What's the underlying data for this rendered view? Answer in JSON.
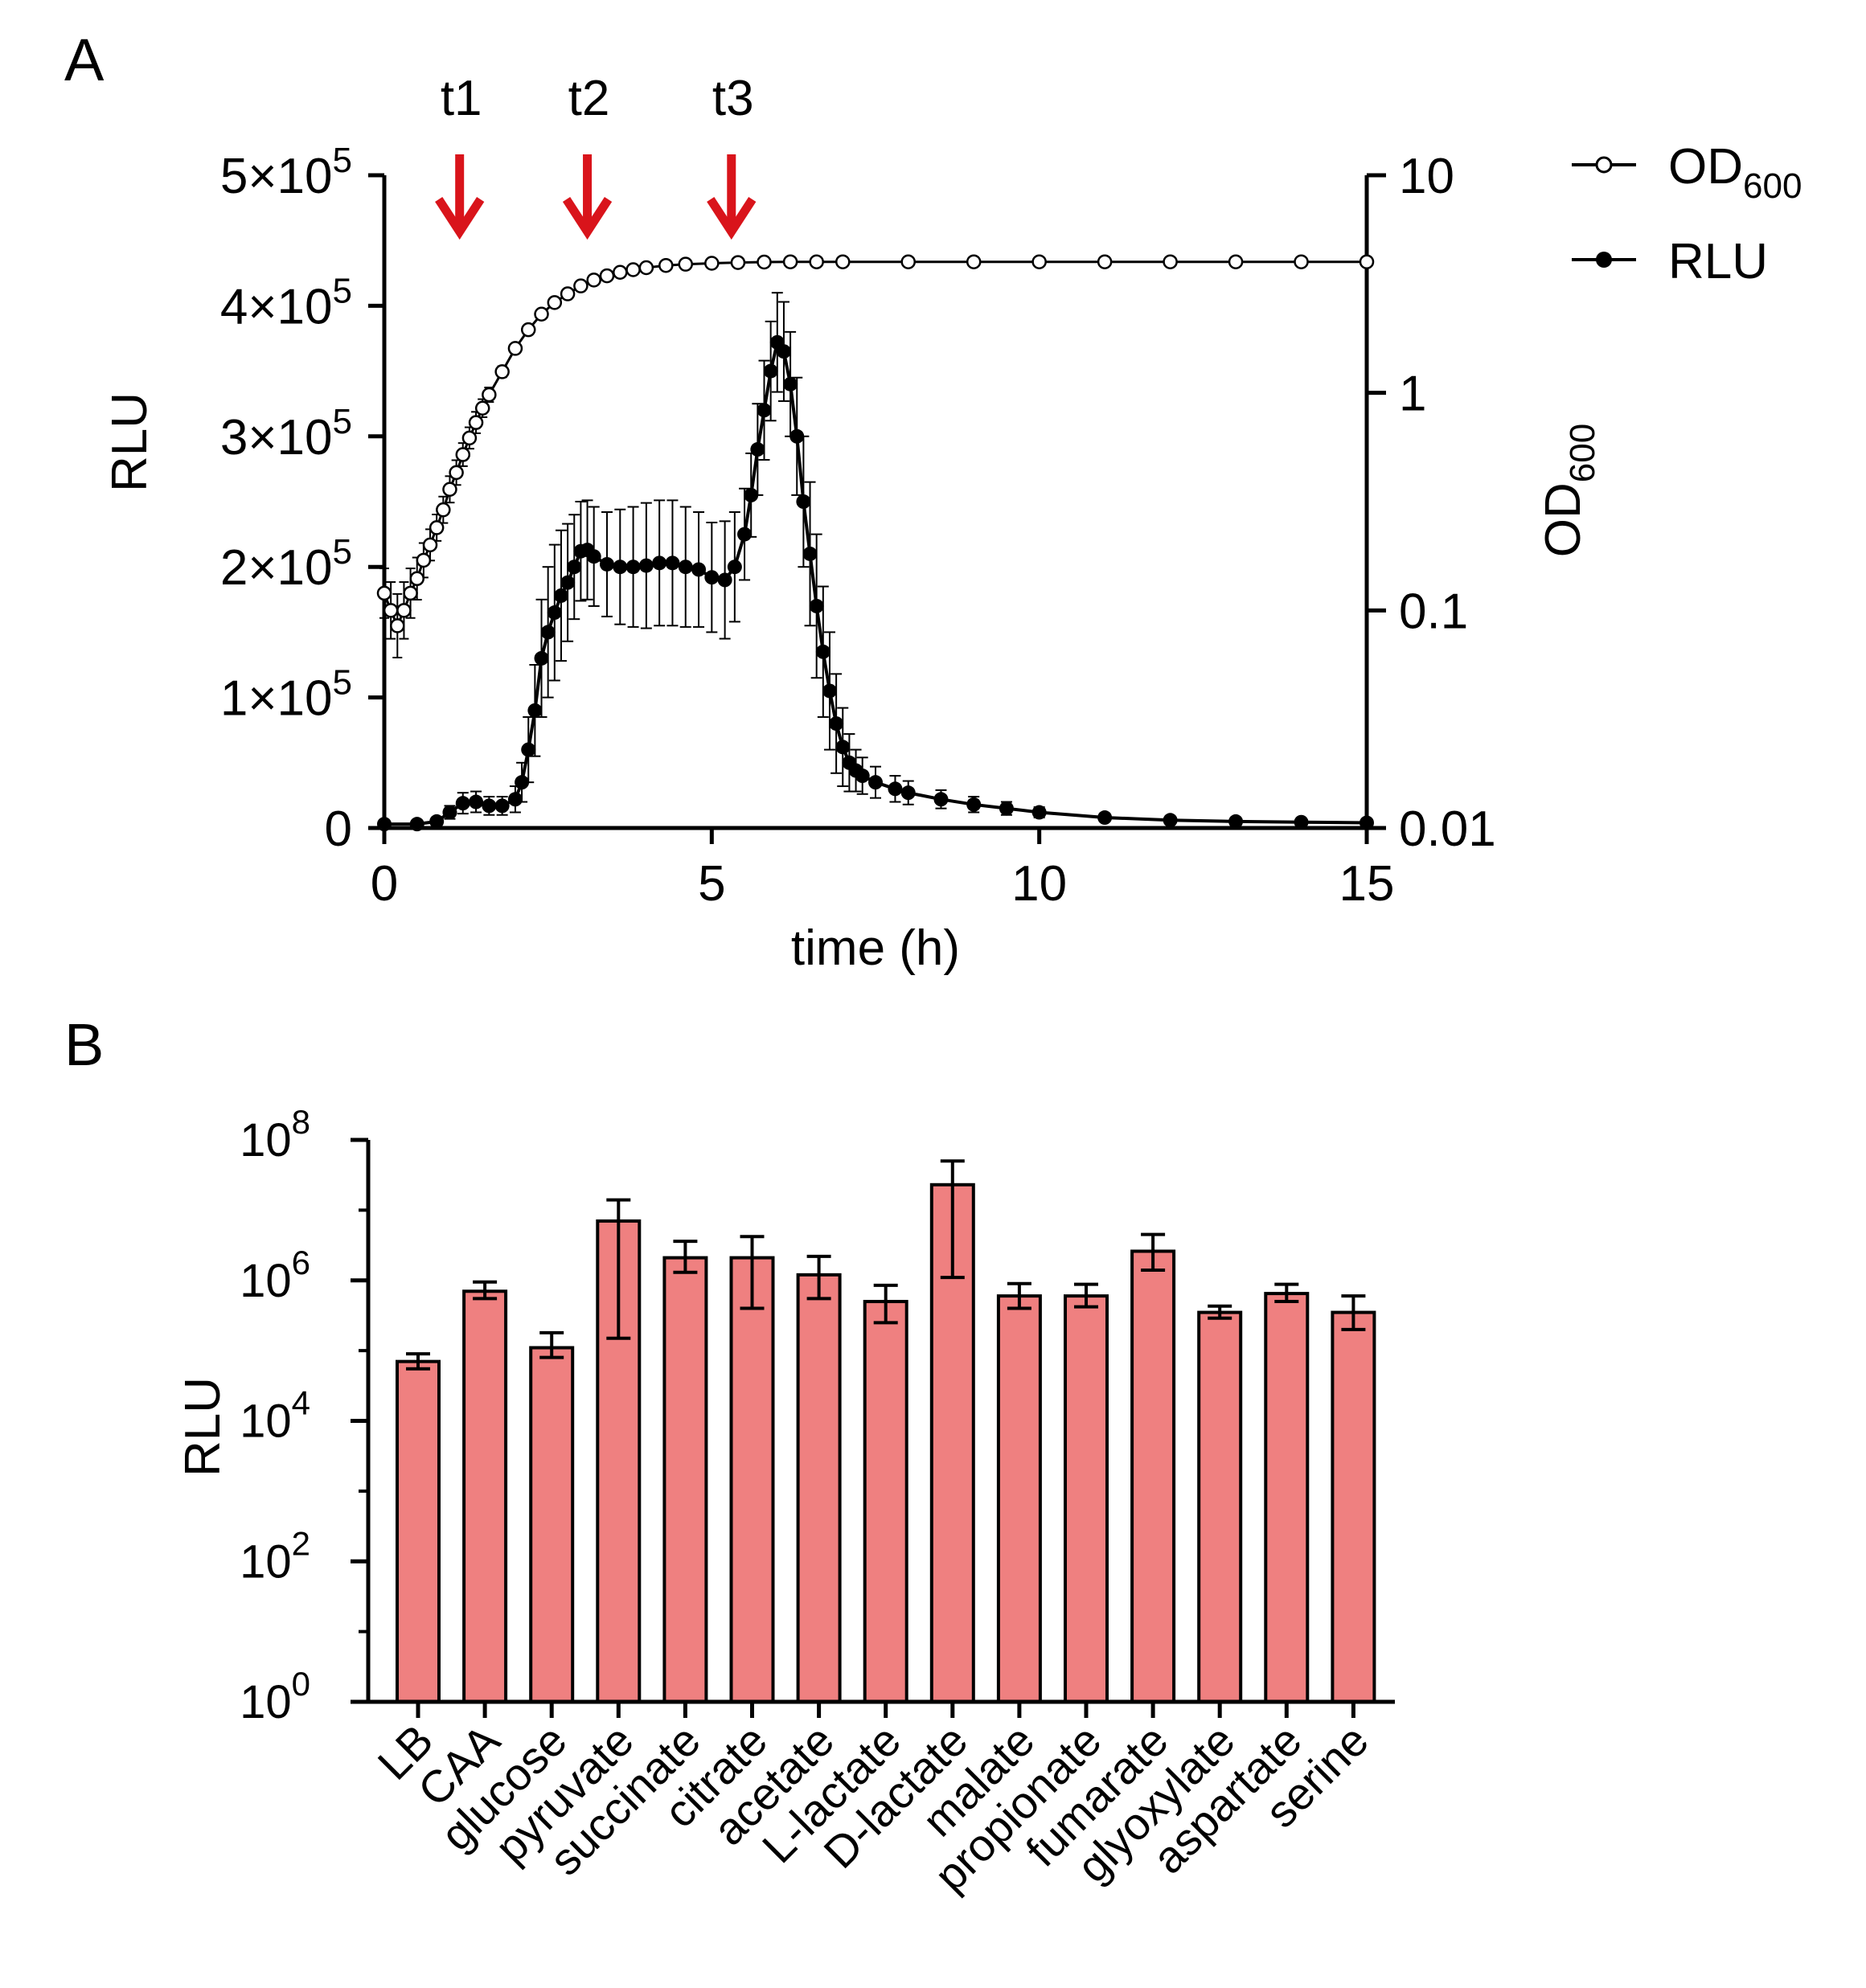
{
  "panels": {
    "a_label": "A",
    "b_label": "B"
  },
  "colors": {
    "arrow": "#d9141b",
    "bar_fill": "#ef8080",
    "line": "#000000"
  },
  "chart_data": [
    {
      "id": "A",
      "type": "line",
      "xlabel": "time (h)",
      "xlim": [
        0,
        15
      ],
      "x_ticks": [
        "0",
        "5",
        "10",
        "15"
      ],
      "x_tick_values": [
        0,
        5,
        10,
        15
      ],
      "y_left": {
        "label": "RLU",
        "ylim": [
          0,
          500000
        ],
        "tick_values": [
          0,
          100000,
          200000,
          300000,
          400000,
          500000
        ],
        "tick_mantissa": [
          "0",
          "1×10",
          "2×10",
          "3×10",
          "4×10",
          "5×10"
        ],
        "tick_exponent": [
          "",
          "5",
          "5",
          "5",
          "5",
          "5"
        ]
      },
      "y_right": {
        "label": "OD",
        "label_sub": "600",
        "scale": "log",
        "ylim": [
          0.01,
          10
        ],
        "tick_values": [
          0.01,
          0.1,
          1,
          10
        ],
        "tick_labels": [
          "0.01",
          "0.1",
          "1",
          "10"
        ]
      },
      "annotations": [
        {
          "label": "t1",
          "x": 1.15
        },
        {
          "label": "t2",
          "x": 3.1
        },
        {
          "label": "t3",
          "x": 5.3
        }
      ],
      "legend": {
        "position": "top-right",
        "entries": [
          {
            "name": "OD",
            "sub": "600",
            "marker": "open-circle"
          },
          {
            "name": "RLU",
            "marker": "filled-circle"
          }
        ]
      },
      "series": [
        {
          "name": "RLU",
          "axis": "left",
          "x": [
            0,
            0.5,
            0.8,
            1.0,
            1.2,
            1.4,
            1.6,
            1.8,
            2.0,
            2.1,
            2.2,
            2.3,
            2.4,
            2.5,
            2.6,
            2.7,
            2.8,
            2.9,
            3.0,
            3.1,
            3.2,
            3.4,
            3.6,
            3.8,
            4.0,
            4.2,
            4.4,
            4.6,
            4.8,
            5.0,
            5.2,
            5.35,
            5.5,
            5.6,
            5.7,
            5.8,
            5.9,
            6.0,
            6.1,
            6.2,
            6.3,
            6.4,
            6.5,
            6.6,
            6.7,
            6.8,
            6.9,
            7.0,
            7.1,
            7.2,
            7.3,
            7.5,
            7.8,
            8.0,
            8.5,
            9.0,
            9.5,
            10.0,
            11.0,
            12.0,
            13.0,
            14.0,
            15.0
          ],
          "values": [
            3000,
            3000,
            5000,
            12000,
            19000,
            20000,
            17000,
            17000,
            22000,
            35000,
            60000,
            90000,
            130000,
            150000,
            165000,
            178000,
            188000,
            200000,
            212000,
            213000,
            208000,
            202000,
            200000,
            200000,
            201000,
            203000,
            203000,
            200000,
            198000,
            192000,
            190000,
            200000,
            225000,
            255000,
            290000,
            320000,
            350000,
            372000,
            365000,
            340000,
            300000,
            250000,
            210000,
            170000,
            135000,
            105000,
            80000,
            62000,
            50000,
            44000,
            40000,
            35000,
            30000,
            27000,
            22000,
            18000,
            15000,
            12000,
            8000,
            6000,
            5000,
            4500,
            4000
          ],
          "errors": [
            1000,
            1000,
            2000,
            5000,
            8000,
            8000,
            7000,
            7000,
            10000,
            15000,
            25000,
            35000,
            45000,
            50000,
            52000,
            50000,
            45000,
            40000,
            38000,
            38000,
            38000,
            40000,
            44000,
            46000,
            48000,
            48000,
            48000,
            46000,
            44000,
            42000,
            45000,
            42000,
            35000,
            32000,
            35000,
            38000,
            38000,
            38000,
            38000,
            40000,
            45000,
            50000,
            55000,
            55000,
            50000,
            45000,
            38000,
            30000,
            22000,
            16000,
            14000,
            12000,
            10000,
            9000,
            7000,
            6000,
            5000,
            4000,
            3000,
            2500,
            2000,
            2000,
            2000
          ]
        },
        {
          "name": "OD600",
          "axis": "right",
          "x": [
            0,
            0.1,
            0.2,
            0.3,
            0.4,
            0.5,
            0.6,
            0.7,
            0.8,
            0.9,
            1.0,
            1.1,
            1.2,
            1.3,
            1.4,
            1.5,
            1.6,
            1.8,
            2.0,
            2.2,
            2.4,
            2.6,
            2.8,
            3.0,
            3.2,
            3.4,
            3.6,
            3.8,
            4.0,
            4.3,
            4.6,
            5.0,
            5.4,
            5.8,
            6.2,
            6.6,
            7.0,
            8.0,
            9.0,
            10.0,
            11.0,
            12.0,
            13.0,
            14.0,
            15.0
          ],
          "values": [
            0.12,
            0.1,
            0.085,
            0.1,
            0.12,
            0.14,
            0.17,
            0.2,
            0.24,
            0.29,
            0.36,
            0.43,
            0.52,
            0.62,
            0.73,
            0.85,
            0.98,
            1.25,
            1.6,
            1.95,
            2.3,
            2.6,
            2.85,
            3.1,
            3.3,
            3.45,
            3.58,
            3.68,
            3.76,
            3.85,
            3.9,
            3.94,
            3.97,
            3.99,
            4.0,
            4.0,
            4.0,
            4.0,
            4.0,
            4.0,
            4.0,
            4.0,
            4.0,
            4.0,
            4.0
          ],
          "error_factors": [
            1.3,
            1.35,
            1.4,
            1.35,
            1.3,
            1.25,
            1.2,
            1.18,
            1.15,
            1.15,
            1.15,
            1.14,
            1.13,
            1.12,
            1.12,
            1.1,
            1.08,
            1.06,
            1.05,
            1.04,
            1.03,
            1.03,
            1.02,
            1.02,
            1.02,
            1.02,
            1.02,
            1.02,
            1.02,
            1.02,
            1.02,
            1.02,
            1.02,
            1.02,
            1.02,
            1.02,
            1.02,
            1.02,
            1.02,
            1.02,
            1.02,
            1.02,
            1.02,
            1.02,
            1.02
          ]
        }
      ]
    },
    {
      "id": "B",
      "type": "bar",
      "ylabel": "RLU",
      "yscale": "log",
      "ylim": [
        1,
        100000000
      ],
      "y_tick_values": [
        1,
        100,
        10000,
        1000000,
        100000000
      ],
      "y_tick_base": [
        "10",
        "10",
        "10",
        "10",
        "10"
      ],
      "y_tick_exponent": [
        "0",
        "2",
        "4",
        "6",
        "8"
      ],
      "categories": [
        "LB",
        "CAA",
        "glucose",
        "pyruvate",
        "succinate",
        "citrate",
        "acetate",
        "L-lactate",
        "D-lactate",
        "malate",
        "propionate",
        "fumarate",
        "glyoxylate",
        "aspartate",
        "serine"
      ],
      "values": [
        70000,
        700000,
        110000,
        7000000,
        2100000,
        2100000,
        1200000,
        500000,
        23000000,
        600000,
        600000,
        2600000,
        350000,
        650000,
        350000
      ],
      "err_low": [
        55000,
        550000,
        80000,
        150000,
        1300000,
        400000,
        550000,
        250000,
        1100000,
        400000,
        420000,
        1400000,
        290000,
        500000,
        200000
      ],
      "err_high": [
        90000,
        950000,
        180000,
        14000000,
        3600000,
        4200000,
        2200000,
        850000,
        50000000,
        900000,
        880000,
        4500000,
        430000,
        880000,
        600000
      ]
    }
  ]
}
